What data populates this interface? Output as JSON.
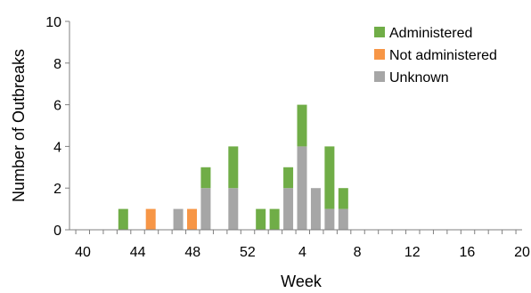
{
  "chart_data": {
    "type": "bar",
    "stacked": true,
    "title": "",
    "xlabel": "Week",
    "ylabel": "Number of Outbreaks",
    "ylim": [
      0,
      10
    ],
    "yticks": [
      "0",
      "2",
      "4",
      "6",
      "8",
      "10"
    ],
    "xticks": [
      "40",
      "44",
      "48",
      "52",
      "4",
      "8",
      "12",
      "16",
      "20"
    ],
    "grid": false,
    "legend_position": "top-right",
    "categories": [
      "40",
      "41",
      "42",
      "43",
      "44",
      "45",
      "46",
      "47",
      "48",
      "49",
      "50",
      "51",
      "52",
      "1",
      "2",
      "3",
      "4",
      "5",
      "6",
      "7",
      "8",
      "9",
      "10",
      "11",
      "12",
      "13",
      "14",
      "15",
      "16",
      "17",
      "18",
      "19",
      "20"
    ],
    "series": [
      {
        "name": "Administered",
        "color": "#70ad47",
        "values": [
          0,
          0,
          0,
          1,
          0,
          0,
          0,
          0,
          0,
          1,
          0,
          2,
          0,
          1,
          1,
          1,
          2,
          0,
          3,
          1,
          0,
          0,
          0,
          0,
          0,
          0,
          0,
          0,
          0,
          0,
          0,
          0,
          0
        ]
      },
      {
        "name": "Not administered",
        "color": "#f79646",
        "values": [
          0,
          0,
          0,
          0,
          0,
          1,
          0,
          0,
          1,
          0,
          0,
          0,
          0,
          0,
          0,
          0,
          0,
          0,
          0,
          0,
          0,
          0,
          0,
          0,
          0,
          0,
          0,
          0,
          0,
          0,
          0,
          0,
          0
        ]
      },
      {
        "name": "Unknown",
        "color": "#a6a6a6",
        "values": [
          0,
          0,
          0,
          0,
          0,
          0,
          0,
          1,
          0,
          2,
          0,
          2,
          0,
          0,
          0,
          2,
          4,
          2,
          1,
          1,
          0,
          0,
          0,
          0,
          0,
          0,
          0,
          0,
          0,
          0,
          0,
          0,
          0
        ]
      }
    ]
  }
}
